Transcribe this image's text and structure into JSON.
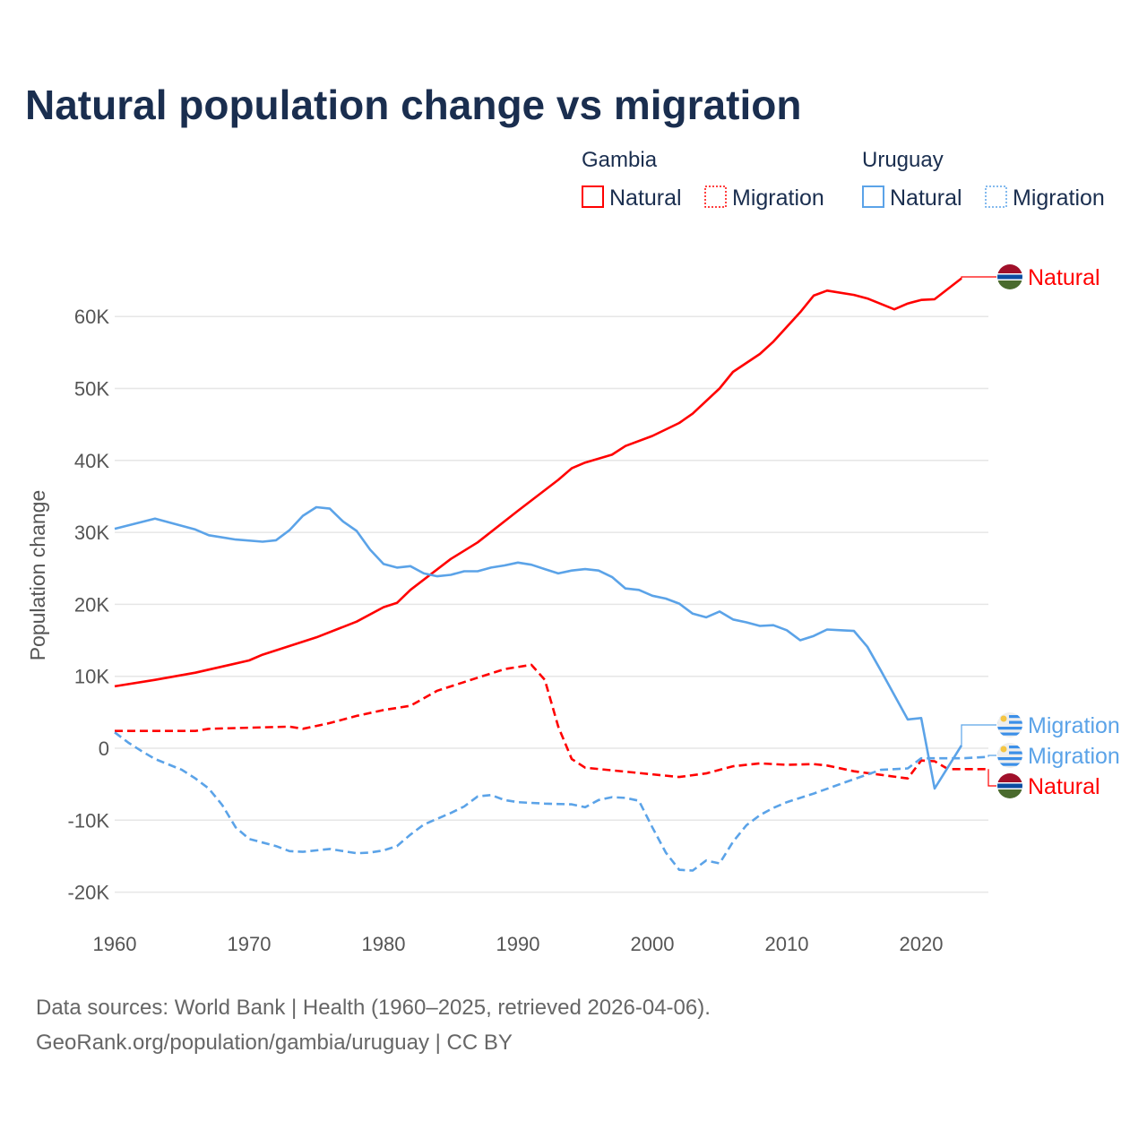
{
  "chart_data": {
    "type": "line",
    "title": "Natural population change vs migration",
    "ylabel": "Population change",
    "xlabel": "",
    "xlim": [
      1960,
      2025
    ],
    "ylim": [
      -22000,
      68000
    ],
    "x_ticks": [
      1960,
      1970,
      1980,
      1990,
      2000,
      2010,
      2020
    ],
    "y_ticks": [
      -20000,
      -10000,
      0,
      10000,
      20000,
      30000,
      40000,
      50000,
      60000
    ],
    "y_tick_labels": [
      "-20K",
      "-10K",
      "0",
      "10K",
      "20K",
      "30K",
      "40K",
      "50K",
      "60K"
    ],
    "grid": true,
    "legend": {
      "placement": "top-right",
      "groups": [
        {
          "country": "Gambia",
          "items": [
            "Natural",
            "Migration"
          ]
        },
        {
          "country": "Uruguay",
          "items": [
            "Natural",
            "Migration"
          ]
        }
      ]
    },
    "series": [
      {
        "name": "Natural",
        "country": "Gambia",
        "color": "#ff0000",
        "dash": false,
        "points": [
          [
            1960,
            8600
          ],
          [
            1963,
            9500
          ],
          [
            1966,
            10500
          ],
          [
            1970,
            12200
          ],
          [
            1971,
            13000
          ],
          [
            1975,
            15400
          ],
          [
            1978,
            17600
          ],
          [
            1980,
            19600
          ],
          [
            1981,
            20200
          ],
          [
            1982,
            22000
          ],
          [
            1985,
            26300
          ],
          [
            1987,
            28600
          ],
          [
            1990,
            33000
          ],
          [
            1993,
            37300
          ],
          [
            1994,
            38900
          ],
          [
            1995,
            39700
          ],
          [
            1997,
            40800
          ],
          [
            1998,
            42000
          ],
          [
            2000,
            43400
          ],
          [
            2002,
            45200
          ],
          [
            2003,
            46500
          ],
          [
            2005,
            50000
          ],
          [
            2006,
            52300
          ],
          [
            2008,
            54800
          ],
          [
            2009,
            56500
          ],
          [
            2011,
            60600
          ],
          [
            2012,
            62900
          ],
          [
            2013,
            63600
          ],
          [
            2015,
            63000
          ],
          [
            2016,
            62500
          ],
          [
            2018,
            61000
          ],
          [
            2019,
            61800
          ],
          [
            2020,
            62300
          ],
          [
            2021,
            62400
          ],
          [
            2023,
            65300
          ]
        ]
      },
      {
        "name": "Migration",
        "country": "Gambia",
        "color": "#ff0000",
        "dash": true,
        "points": [
          [
            1960,
            2400
          ],
          [
            1966,
            2400
          ],
          [
            1967,
            2700
          ],
          [
            1973,
            3000
          ],
          [
            1974,
            2700
          ],
          [
            1976,
            3500
          ],
          [
            1978,
            4500
          ],
          [
            1980,
            5300
          ],
          [
            1982,
            5900
          ],
          [
            1984,
            8000
          ],
          [
            1987,
            9800
          ],
          [
            1989,
            11000
          ],
          [
            1991,
            11600
          ],
          [
            1992,
            9500
          ],
          [
            1993,
            3000
          ],
          [
            1994,
            -1500
          ],
          [
            1995,
            -2700
          ],
          [
            2002,
            -4000
          ],
          [
            2004,
            -3500
          ],
          [
            2006,
            -2500
          ],
          [
            2008,
            -2100
          ],
          [
            2010,
            -2300
          ],
          [
            2012,
            -2200
          ],
          [
            2013,
            -2400
          ],
          [
            2015,
            -3200
          ],
          [
            2019,
            -4200
          ],
          [
            2020,
            -1700
          ],
          [
            2021,
            -1800
          ],
          [
            2022,
            -2900
          ],
          [
            2025,
            -2900
          ]
        ]
      },
      {
        "name": "Natural",
        "country": "Uruguay",
        "color": "#5ba3e8",
        "dash": false,
        "points": [
          [
            1960,
            30500
          ],
          [
            1963,
            31900
          ],
          [
            1966,
            30400
          ],
          [
            1967,
            29600
          ],
          [
            1969,
            29000
          ],
          [
            1971,
            28700
          ],
          [
            1972,
            28900
          ],
          [
            1973,
            30300
          ],
          [
            1974,
            32300
          ],
          [
            1975,
            33500
          ],
          [
            1976,
            33300
          ],
          [
            1977,
            31500
          ],
          [
            1978,
            30200
          ],
          [
            1979,
            27600
          ],
          [
            1980,
            25600
          ],
          [
            1981,
            25100
          ],
          [
            1982,
            25300
          ],
          [
            1983,
            24300
          ],
          [
            1984,
            23900
          ],
          [
            1985,
            24100
          ],
          [
            1986,
            24600
          ],
          [
            1987,
            24600
          ],
          [
            1988,
            25100
          ],
          [
            1989,
            25400
          ],
          [
            1990,
            25800
          ],
          [
            1991,
            25500
          ],
          [
            1992,
            24900
          ],
          [
            1993,
            24300
          ],
          [
            1994,
            24700
          ],
          [
            1995,
            24900
          ],
          [
            1996,
            24700
          ],
          [
            1997,
            23800
          ],
          [
            1998,
            22200
          ],
          [
            1999,
            22000
          ],
          [
            2000,
            21200
          ],
          [
            2001,
            20800
          ],
          [
            2002,
            20100
          ],
          [
            2003,
            18700
          ],
          [
            2004,
            18200
          ],
          [
            2005,
            19000
          ],
          [
            2006,
            17900
          ],
          [
            2007,
            17500
          ],
          [
            2008,
            17000
          ],
          [
            2009,
            17100
          ],
          [
            2010,
            16400
          ],
          [
            2011,
            15000
          ],
          [
            2012,
            15600
          ],
          [
            2013,
            16500
          ],
          [
            2014,
            16400
          ],
          [
            2015,
            16300
          ],
          [
            2016,
            14100
          ],
          [
            2017,
            10800
          ],
          [
            2018,
            7400
          ],
          [
            2019,
            4000
          ],
          [
            2020,
            4200
          ],
          [
            2021,
            -5600
          ],
          [
            2022,
            -2600
          ],
          [
            2023,
            400
          ]
        ]
      },
      {
        "name": "Migration",
        "country": "Uruguay",
        "color": "#5ba3e8",
        "dash": true,
        "points": [
          [
            1960,
            2200
          ],
          [
            1961,
            800
          ],
          [
            1962,
            -400
          ],
          [
            1963,
            -1500
          ],
          [
            1965,
            -3000
          ],
          [
            1966,
            -4200
          ],
          [
            1967,
            -5600
          ],
          [
            1968,
            -7900
          ],
          [
            1969,
            -11000
          ],
          [
            1970,
            -12600
          ],
          [
            1972,
            -13600
          ],
          [
            1973,
            -14300
          ],
          [
            1974,
            -14400
          ],
          [
            1976,
            -14000
          ],
          [
            1978,
            -14600
          ],
          [
            1979,
            -14500
          ],
          [
            1980,
            -14200
          ],
          [
            1981,
            -13600
          ],
          [
            1982,
            -12000
          ],
          [
            1983,
            -10600
          ],
          [
            1985,
            -9000
          ],
          [
            1986,
            -8100
          ],
          [
            1987,
            -6700
          ],
          [
            1988,
            -6500
          ],
          [
            1989,
            -7200
          ],
          [
            1990,
            -7500
          ],
          [
            1992,
            -7700
          ],
          [
            1994,
            -7800
          ],
          [
            1995,
            -8200
          ],
          [
            1996,
            -7200
          ],
          [
            1997,
            -6800
          ],
          [
            1998,
            -6900
          ],
          [
            1999,
            -7300
          ],
          [
            2000,
            -11000
          ],
          [
            2001,
            -14500
          ],
          [
            2002,
            -16900
          ],
          [
            2003,
            -17000
          ],
          [
            2004,
            -15600
          ],
          [
            2005,
            -16000
          ],
          [
            2006,
            -13000
          ],
          [
            2007,
            -10700
          ],
          [
            2008,
            -9300
          ],
          [
            2009,
            -8300
          ],
          [
            2010,
            -7500
          ],
          [
            2012,
            -6300
          ],
          [
            2015,
            -4300
          ],
          [
            2017,
            -3000
          ],
          [
            2019,
            -2800
          ],
          [
            2020,
            -1400
          ],
          [
            2023,
            -1400
          ],
          [
            2025,
            -1200
          ]
        ]
      }
    ],
    "end_labels": [
      "Natural",
      "Natural",
      "Migration",
      "Migration"
    ]
  },
  "footer": {
    "line1": "Data sources: World Bank | Health (1960–2025, retrieved 2026-04-06).",
    "line2": "GeoRank.org/population/gambia/uruguay | CC BY"
  }
}
